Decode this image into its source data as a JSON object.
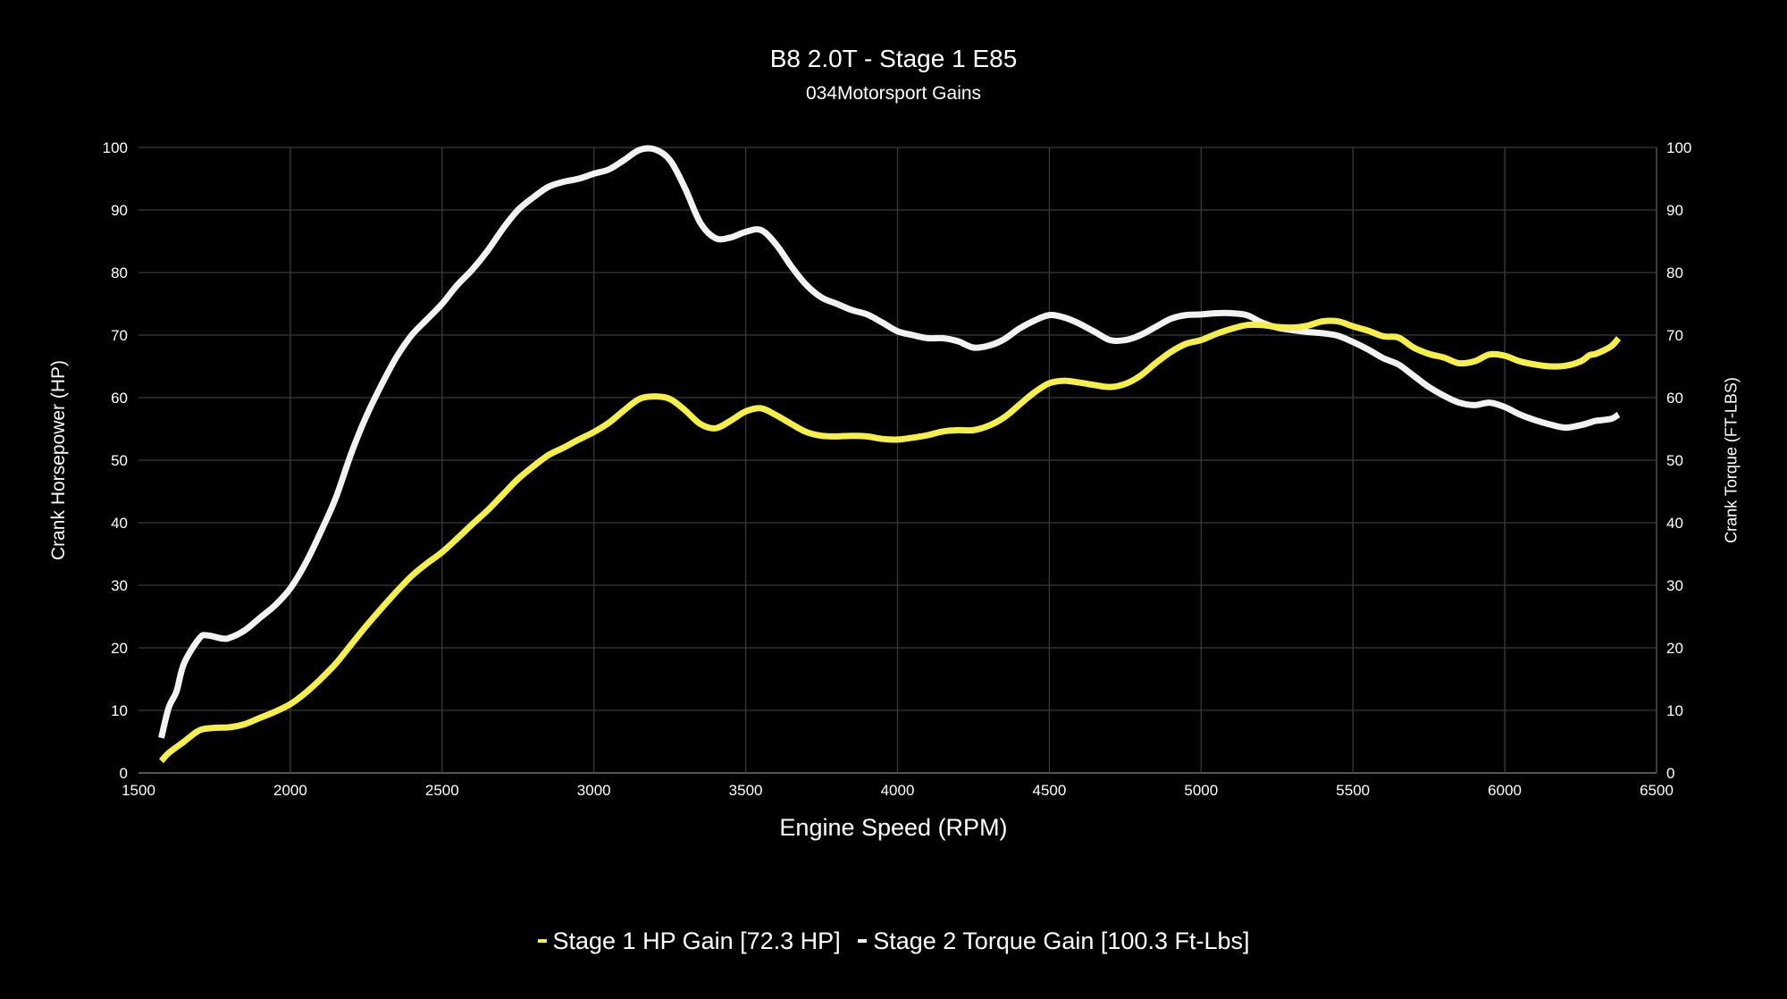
{
  "chart_data": {
    "type": "line",
    "title": "B8 2.0T - Stage 1 E85",
    "subtitle": "034Motorsport Gains",
    "xlabel": "Engine Speed (RPM)",
    "ylabel": "Crank Horsepower (HP)",
    "ylabel_right": "Crank Torque (FT-LBS)",
    "xlim": [
      1500,
      6500
    ],
    "ylim": [
      0,
      100
    ],
    "ylim_right": [
      0,
      100
    ],
    "x_ticks": [
      1500,
      2000,
      2500,
      3000,
      3500,
      4000,
      4500,
      5000,
      5500,
      6000,
      6500
    ],
    "y_ticks": [
      0,
      10,
      20,
      30,
      40,
      50,
      60,
      70,
      80,
      90,
      100
    ],
    "grid": true,
    "legend_position": "bottom",
    "series": [
      {
        "name": "Stage 1 HP Gain [72.3 HP]",
        "axis": "left",
        "color": "#f4ef4a",
        "x": [
          1575,
          1600,
          1650,
          1700,
          1750,
          1800,
          1850,
          1900,
          1950,
          2000,
          2050,
          2100,
          2150,
          2200,
          2250,
          2300,
          2350,
          2400,
          2450,
          2500,
          2550,
          2600,
          2650,
          2700,
          2750,
          2800,
          2850,
          2900,
          2950,
          3000,
          3050,
          3100,
          3150,
          3200,
          3250,
          3300,
          3350,
          3400,
          3450,
          3500,
          3550,
          3600,
          3650,
          3700,
          3750,
          3800,
          3850,
          3900,
          3950,
          4000,
          4050,
          4100,
          4150,
          4200,
          4250,
          4300,
          4350,
          4400,
          4450,
          4500,
          4550,
          4600,
          4650,
          4700,
          4750,
          4800,
          4850,
          4900,
          4950,
          5000,
          5050,
          5100,
          5150,
          5200,
          5250,
          5300,
          5350,
          5400,
          5450,
          5500,
          5550,
          5600,
          5650,
          5700,
          5750,
          5800,
          5850,
          5900,
          5950,
          6000,
          6050,
          6100,
          6150,
          6200,
          6250,
          6280,
          6300,
          6350,
          6375
        ],
        "values": [
          1.9,
          3.2,
          5,
          6.8,
          7.2,
          7.3,
          7.8,
          8.8,
          9.8,
          11,
          12.8,
          15,
          17.5,
          20.5,
          23.5,
          26.3,
          29,
          31.5,
          33.5,
          35.3,
          37.5,
          39.8,
          42,
          44.5,
          47,
          49,
          50.8,
          52,
          53.3,
          54.5,
          56,
          58,
          59.8,
          60.2,
          59.8,
          58,
          55.8,
          55.1,
          56.3,
          57.8,
          58.3,
          57.2,
          55.8,
          54.5,
          53.9,
          53.8,
          53.9,
          53.8,
          53.4,
          53.3,
          53.6,
          54,
          54.6,
          54.8,
          54.8,
          55.5,
          56.8,
          58.8,
          60.8,
          62.3,
          62.7,
          62.4,
          62,
          61.7,
          62.2,
          63.5,
          65.5,
          67.3,
          68.6,
          69.2,
          70.2,
          71,
          71.6,
          71.6,
          71.3,
          71.2,
          71.5,
          72.2,
          72.2,
          71.4,
          70.7,
          69.8,
          69.6,
          68,
          67,
          66.4,
          65.5,
          65.8,
          66.9,
          66.7,
          65.8,
          65.3,
          65,
          65.1,
          65.8,
          66.8,
          67,
          68.2,
          69.5
        ]
      },
      {
        "name": "Stage 2 Torque Gain [100.3 Ft-Lbs]",
        "axis": "right",
        "color": "#f2f2f2",
        "x": [
          1575,
          1600,
          1625,
          1650,
          1700,
          1725,
          1775,
          1800,
          1850,
          1900,
          1950,
          2000,
          2050,
          2100,
          2150,
          2200,
          2250,
          2300,
          2350,
          2400,
          2450,
          2500,
          2550,
          2600,
          2650,
          2700,
          2750,
          2800,
          2850,
          2900,
          2950,
          3000,
          3050,
          3100,
          3150,
          3200,
          3250,
          3300,
          3350,
          3400,
          3450,
          3500,
          3550,
          3600,
          3650,
          3700,
          3750,
          3800,
          3850,
          3900,
          3950,
          4000,
          4050,
          4100,
          4150,
          4200,
          4250,
          4300,
          4350,
          4400,
          4450,
          4500,
          4550,
          4600,
          4650,
          4700,
          4750,
          4800,
          4850,
          4900,
          4950,
          5000,
          5050,
          5100,
          5150,
          5200,
          5250,
          5300,
          5350,
          5400,
          5450,
          5500,
          5550,
          5600,
          5650,
          5700,
          5750,
          5800,
          5850,
          5900,
          5950,
          6000,
          6050,
          6100,
          6150,
          6200,
          6250,
          6280,
          6300,
          6350,
          6375
        ],
        "values": [
          5.6,
          10.5,
          13,
          17.5,
          21.5,
          22,
          21.5,
          21.6,
          22.8,
          24.8,
          26.8,
          29.5,
          33.5,
          38.5,
          44,
          51,
          57,
          62,
          66.5,
          70,
          72.5,
          75,
          78,
          80.5,
          83.5,
          87,
          90,
          92,
          93.7,
          94.5,
          95,
          95.8,
          96.5,
          98,
          99.6,
          99.7,
          98,
          93.5,
          88,
          85.5,
          85.6,
          86.5,
          86.8,
          84.5,
          81,
          78,
          76,
          75,
          74,
          73.3,
          72,
          70.6,
          70,
          69.5,
          69.5,
          69,
          68,
          68.3,
          69.3,
          71,
          72.3,
          73.2,
          72.8,
          71.8,
          70.5,
          69.2,
          69.2,
          70,
          71.3,
          72.6,
          73.2,
          73.3,
          73.5,
          73.5,
          73.2,
          72,
          71.2,
          70.8,
          70.5,
          70.3,
          69.9,
          68.9,
          67.7,
          66.3,
          65.3,
          63.5,
          61.7,
          60.3,
          59.2,
          58.8,
          59.2,
          58.5,
          57.3,
          56.4,
          55.7,
          55.2,
          55.6,
          56,
          56.3,
          56.6,
          57.3
        ]
      }
    ]
  },
  "colors": {
    "background": "#000000",
    "grid": "#3a3a3a",
    "text": "#ffffff"
  }
}
